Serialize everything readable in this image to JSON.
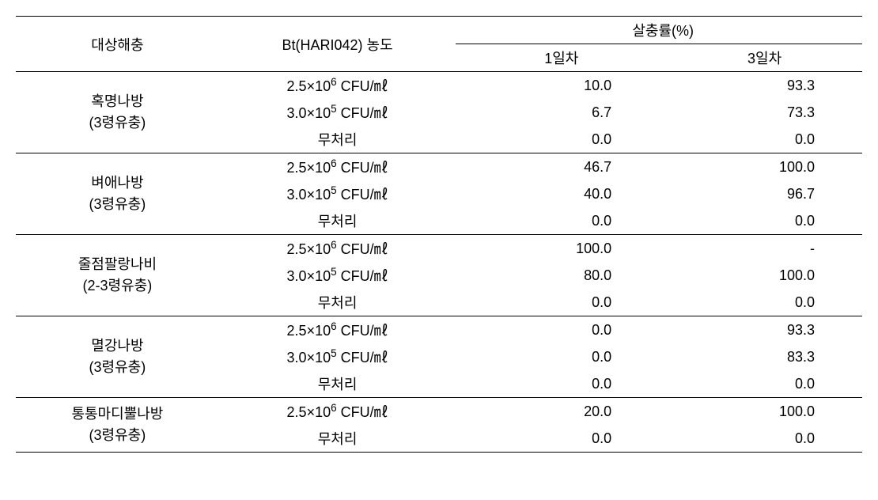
{
  "table": {
    "header": {
      "pest": "대상해충",
      "concentration": "Bt(HARI042) 농도",
      "rate": "살충률(%)",
      "day1": "1일차",
      "day3": "3일차"
    },
    "concentrations": {
      "c1_prefix": "2.5×10",
      "c1_exp": "6",
      "c1_suffix": " CFU/㎖",
      "c2_prefix": "3.0×10",
      "c2_exp": "5",
      "c2_suffix": " CFU/㎖",
      "untreated": "무처리"
    },
    "groups": [
      {
        "pest_line1": "혹명나방",
        "pest_line2": "(3령유충)",
        "rows": [
          {
            "conc_key": "c1",
            "day1": "10.0",
            "day3": "93.3"
          },
          {
            "conc_key": "c2",
            "day1": "6.7",
            "day3": "73.3"
          },
          {
            "conc_key": "un",
            "day1": "0.0",
            "day3": "0.0"
          }
        ]
      },
      {
        "pest_line1": "벼애나방",
        "pest_line2": "(3령유충)",
        "rows": [
          {
            "conc_key": "c1",
            "day1": "46.7",
            "day3": "100.0"
          },
          {
            "conc_key": "c2",
            "day1": "40.0",
            "day3": "96.7"
          },
          {
            "conc_key": "un",
            "day1": "0.0",
            "day3": "0.0"
          }
        ]
      },
      {
        "pest_line1": "줄점팔랑나비",
        "pest_line2": "(2-3령유충)",
        "rows": [
          {
            "conc_key": "c1",
            "day1": "100.0",
            "day3": "-"
          },
          {
            "conc_key": "c2",
            "day1": "80.0",
            "day3": "100.0"
          },
          {
            "conc_key": "un",
            "day1": "0.0",
            "day3": "0.0"
          }
        ]
      },
      {
        "pest_line1": "멸강나방",
        "pest_line2": "(3령유충)",
        "rows": [
          {
            "conc_key": "c1",
            "day1": "0.0",
            "day3": "93.3"
          },
          {
            "conc_key": "c2",
            "day1": "0.0",
            "day3": "83.3"
          },
          {
            "conc_key": "un",
            "day1": "0.0",
            "day3": "0.0"
          }
        ]
      },
      {
        "pest_line1": "통통마디뿔나방",
        "pest_line2": "(3령유충)",
        "rows": [
          {
            "conc_key": "c1",
            "day1": "20.0",
            "day3": "100.0"
          },
          {
            "conc_key": "un",
            "day1": "0.0",
            "day3": "0.0"
          }
        ]
      }
    ]
  }
}
